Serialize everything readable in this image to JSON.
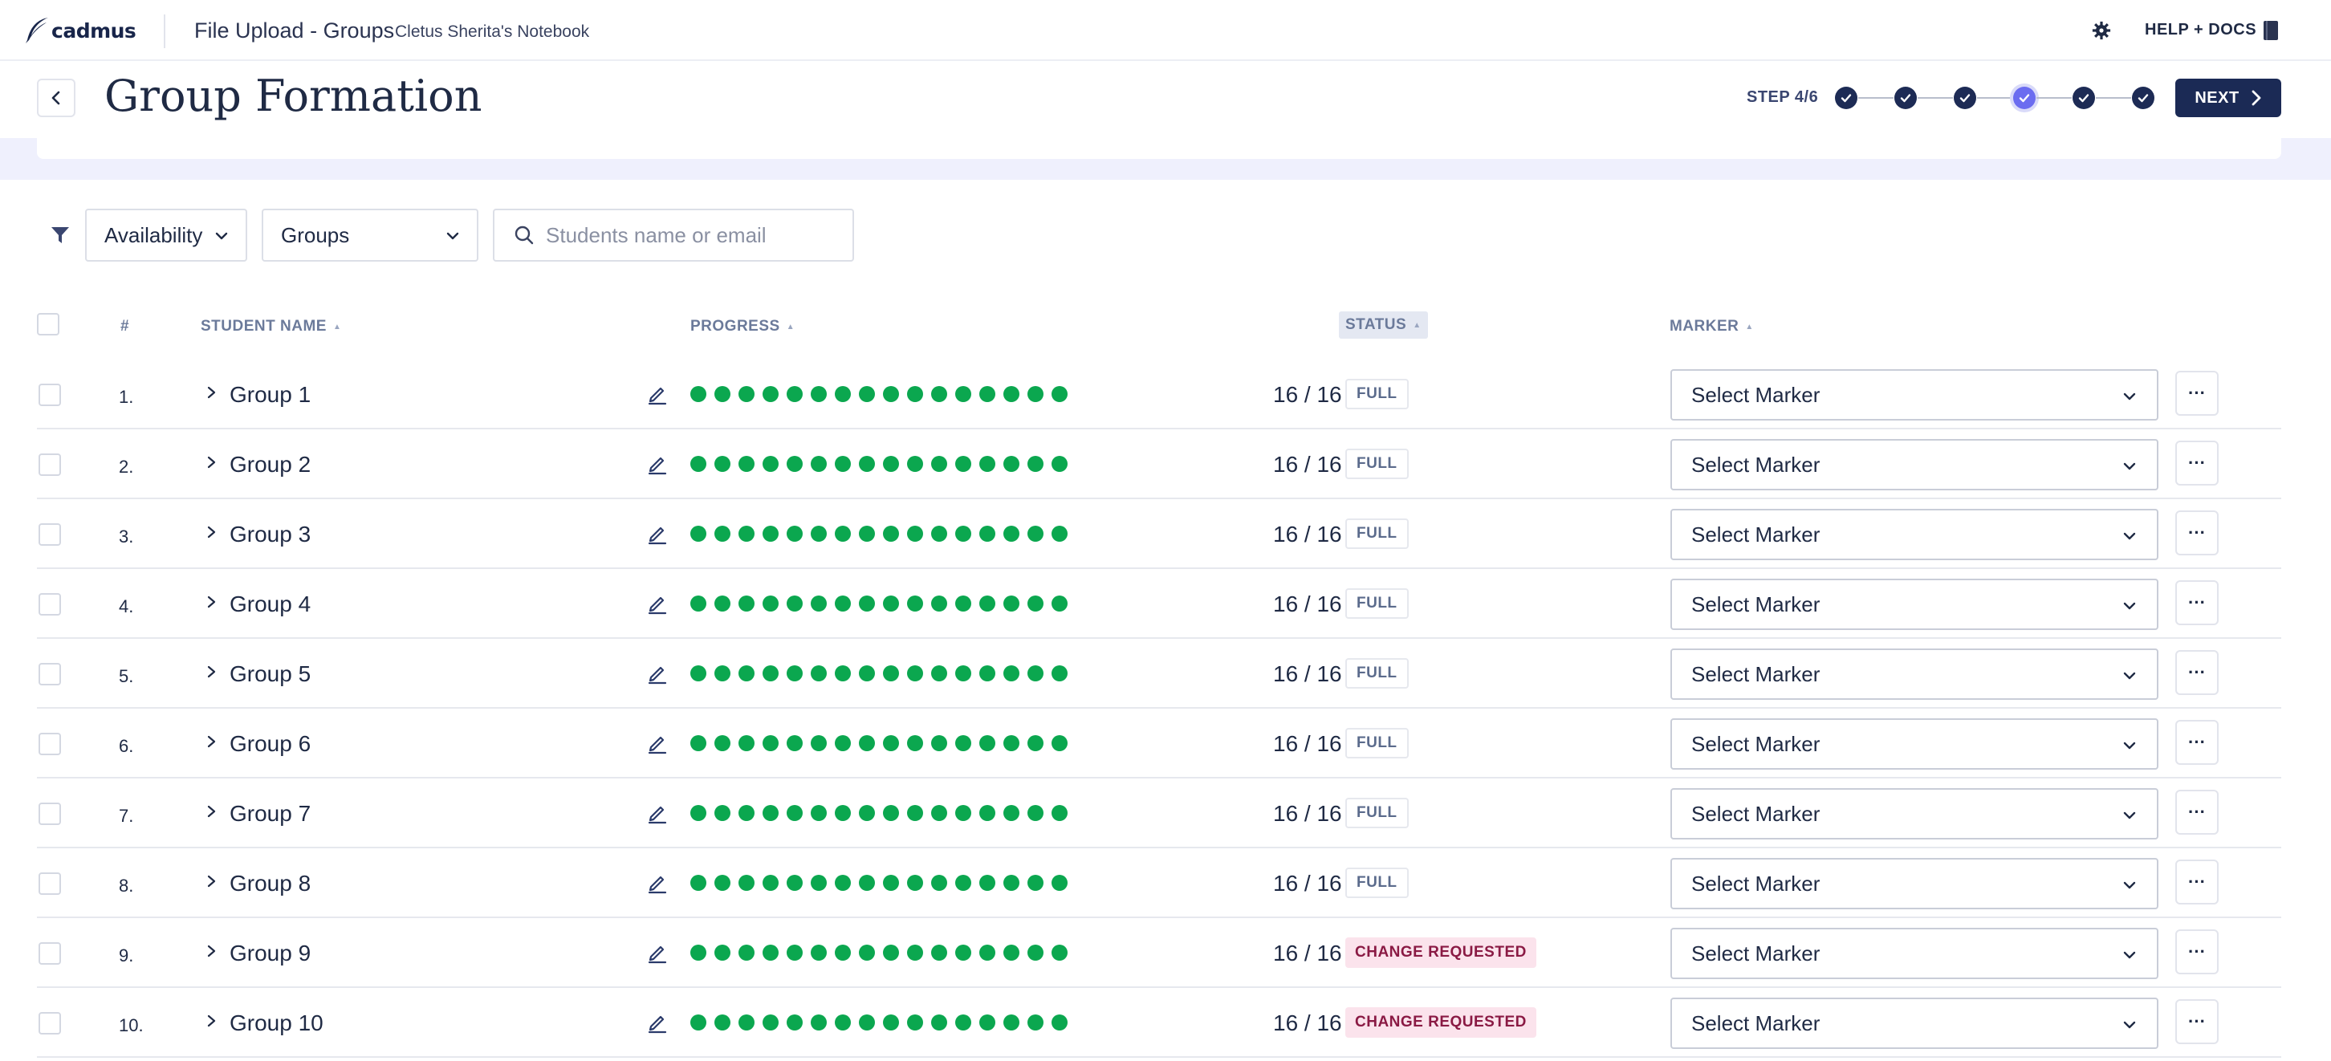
{
  "topbar": {
    "logo_text": "cadmus",
    "app_title": "File Upload - Groups",
    "notebook": "Cletus Sherita's Notebook",
    "help_label": "HELP + DOCS"
  },
  "header": {
    "title": "Group Formation",
    "step_label": "STEP 4/6",
    "steps_total": 6,
    "current_step": 4,
    "next_label": "NEXT"
  },
  "filters": {
    "availability_label": "Availability",
    "groups_label": "Groups",
    "search_placeholder": "Students name or email"
  },
  "table": {
    "columns": {
      "index": "#",
      "name": "STUDENT NAME",
      "progress": "PROGRESS",
      "status": "STATUS",
      "marker": "MARKER"
    },
    "rows": [
      {
        "num": "1.",
        "name": "Group 1",
        "progress_done": 16,
        "count": "16 / 16",
        "status": "FULL",
        "marker": "Select Marker"
      },
      {
        "num": "2.",
        "name": "Group 2",
        "progress_done": 16,
        "count": "16 / 16",
        "status": "FULL",
        "marker": "Select Marker"
      },
      {
        "num": "3.",
        "name": "Group 3",
        "progress_done": 16,
        "count": "16 / 16",
        "status": "FULL",
        "marker": "Select Marker"
      },
      {
        "num": "4.",
        "name": "Group 4",
        "progress_done": 16,
        "count": "16 / 16",
        "status": "FULL",
        "marker": "Select Marker"
      },
      {
        "num": "5.",
        "name": "Group 5",
        "progress_done": 16,
        "count": "16 / 16",
        "status": "FULL",
        "marker": "Select Marker"
      },
      {
        "num": "6.",
        "name": "Group 6",
        "progress_done": 16,
        "count": "16 / 16",
        "status": "FULL",
        "marker": "Select Marker"
      },
      {
        "num": "7.",
        "name": "Group 7",
        "progress_done": 16,
        "count": "16 / 16",
        "status": "FULL",
        "marker": "Select Marker"
      },
      {
        "num": "8.",
        "name": "Group 8",
        "progress_done": 16,
        "count": "16 / 16",
        "status": "FULL",
        "marker": "Select Marker"
      },
      {
        "num": "9.",
        "name": "Group 9",
        "progress_done": 16,
        "count": "16 / 16",
        "status": "CHANGE REQUESTED",
        "marker": "Select Marker"
      },
      {
        "num": "10.",
        "name": "Group 10",
        "progress_done": 16,
        "count": "16 / 16",
        "status": "CHANGE REQUESTED",
        "marker": "Select Marker"
      }
    ],
    "more_label": "···"
  },
  "colors": {
    "brand_navy": "#1b2a55",
    "step_current": "#6b6cf0",
    "progress_green": "#0ba74f",
    "change_badge_bg": "#fbe3ec",
    "change_badge_text": "#8a1a44"
  }
}
